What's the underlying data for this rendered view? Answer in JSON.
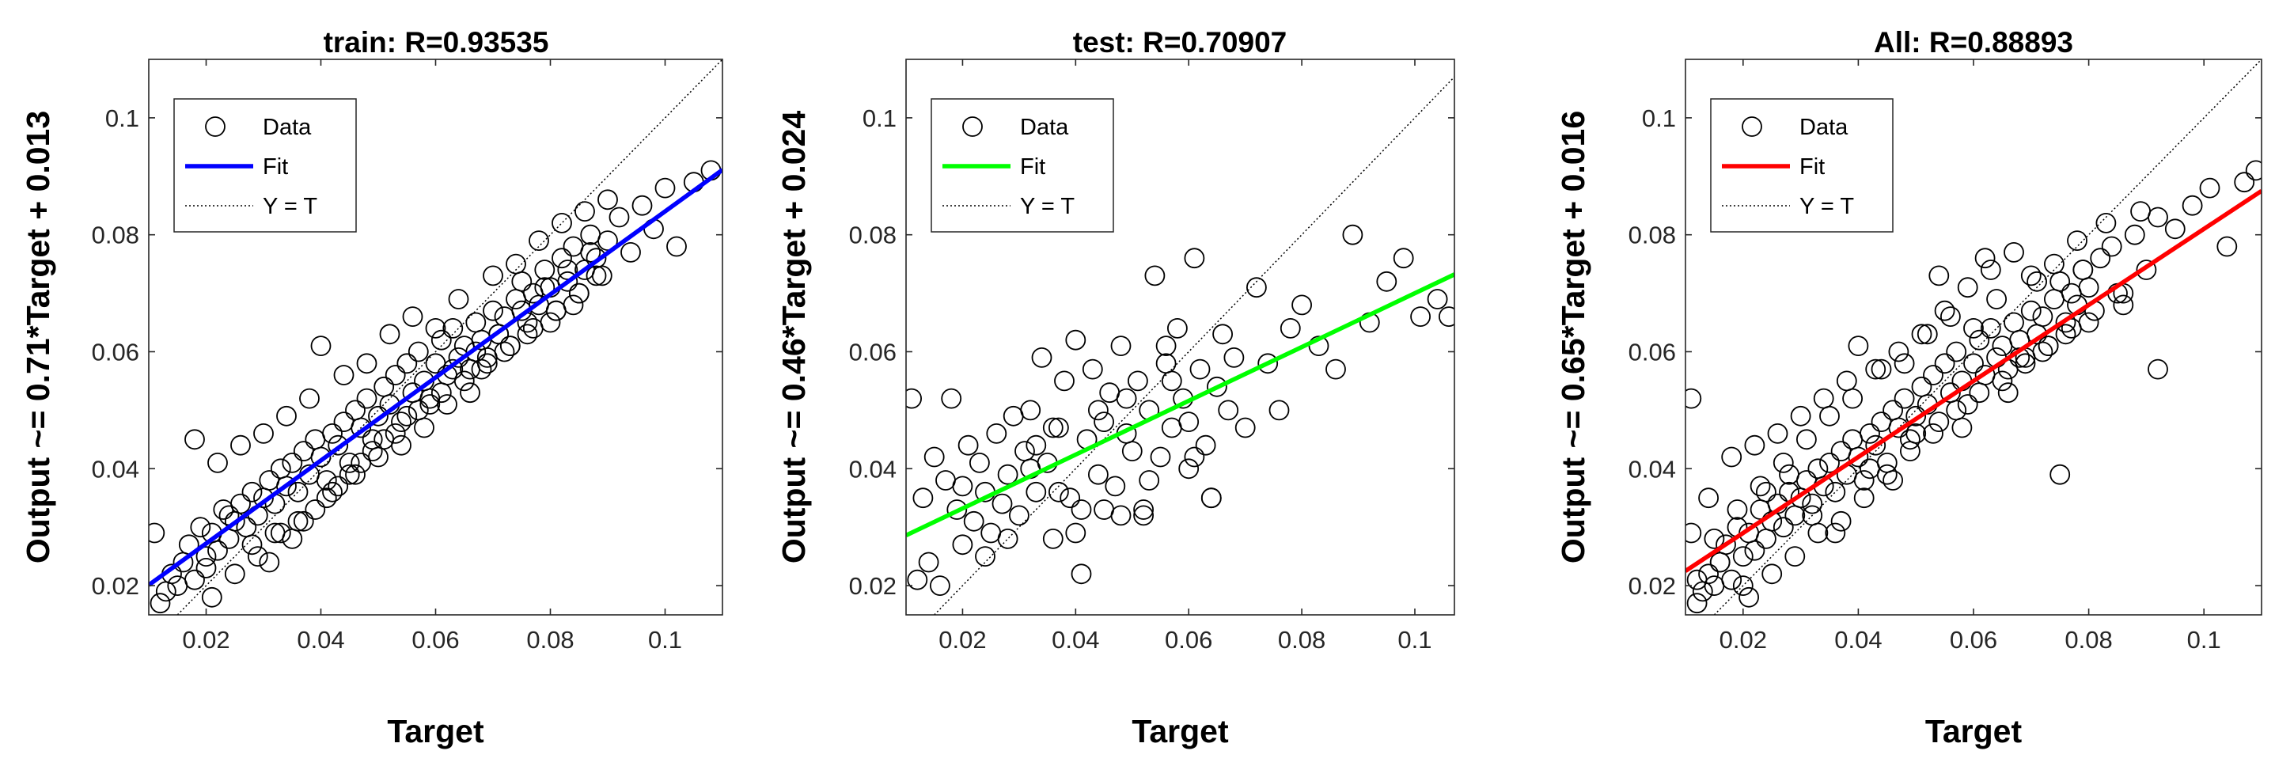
{
  "chart_data": [
    {
      "type": "scatter",
      "title": "train: R=0.93535",
      "xlabel": "Target",
      "ylabel": "Output ~= 0.71*Target + 0.013",
      "xlim": [
        0.01,
        0.11
      ],
      "ylim": [
        0.015,
        0.11
      ],
      "xticks": [
        0.02,
        0.04,
        0.06,
        0.08,
        0.1
      ],
      "yticks": [
        0.02,
        0.04,
        0.06,
        0.08,
        0.1
      ],
      "xtick_labels": [
        "0.02",
        "0.04",
        "0.06",
        "0.08",
        "0.1"
      ],
      "ytick_labels": [
        "0.02",
        "0.04",
        "0.06",
        "0.08",
        "0.1"
      ],
      "fit": {
        "slope": 0.71,
        "intercept": 0.013,
        "color": "#0000ff"
      },
      "legend": {
        "placement": "top-left",
        "entries": [
          "Data",
          "Fit",
          "Y = T"
        ]
      },
      "grid": false,
      "points_note": "",
      "x": [
        0.011,
        0.012,
        0.013,
        0.014,
        0.015,
        0.016,
        0.017,
        0.018,
        0.019,
        0.02,
        0.021,
        0.022,
        0.023,
        0.024,
        0.025,
        0.026,
        0.027,
        0.028,
        0.029,
        0.03,
        0.031,
        0.032,
        0.033,
        0.034,
        0.035,
        0.036,
        0.037,
        0.038,
        0.039,
        0.04,
        0.041,
        0.042,
        0.043,
        0.044,
        0.045,
        0.046,
        0.047,
        0.048,
        0.049,
        0.05,
        0.051,
        0.052,
        0.053,
        0.054,
        0.055,
        0.056,
        0.057,
        0.058,
        0.059,
        0.06,
        0.061,
        0.062,
        0.063,
        0.064,
        0.065,
        0.066,
        0.067,
        0.068,
        0.069,
        0.07,
        0.071,
        0.072,
        0.073,
        0.074,
        0.075,
        0.076,
        0.077,
        0.078,
        0.079,
        0.08,
        0.081,
        0.082,
        0.083,
        0.084,
        0.085,
        0.086,
        0.087,
        0.088,
        0.089,
        0.09,
        0.092,
        0.094,
        0.096,
        0.098,
        0.1,
        0.102,
        0.105,
        0.108,
        0.018,
        0.02,
        0.022,
        0.024,
        0.026,
        0.028,
        0.03,
        0.032,
        0.034,
        0.036,
        0.038,
        0.04,
        0.042,
        0.044,
        0.046,
        0.048,
        0.05,
        0.052,
        0.054,
        0.056,
        0.058,
        0.06,
        0.062,
        0.064,
        0.066,
        0.068,
        0.07,
        0.072,
        0.074,
        0.076,
        0.078,
        0.08,
        0.082,
        0.084,
        0.086,
        0.088,
        0.09,
        0.021,
        0.025,
        0.029,
        0.033,
        0.037,
        0.041,
        0.045,
        0.049,
        0.053,
        0.057,
        0.061,
        0.065,
        0.069,
        0.073,
        0.077,
        0.081,
        0.085,
        0.031,
        0.035,
        0.039,
        0.043,
        0.047,
        0.051,
        0.055,
        0.059,
        0.063,
        0.067,
        0.071,
        0.075,
        0.079,
        0.083,
        0.087
      ],
      "y": [
        0.029,
        0.017,
        0.019,
        0.022,
        0.02,
        0.024,
        0.027,
        0.021,
        0.03,
        0.025,
        0.029,
        0.026,
        0.033,
        0.028,
        0.031,
        0.034,
        0.03,
        0.036,
        0.032,
        0.035,
        0.038,
        0.034,
        0.04,
        0.037,
        0.041,
        0.036,
        0.043,
        0.039,
        0.045,
        0.042,
        0.038,
        0.046,
        0.044,
        0.048,
        0.041,
        0.05,
        0.047,
        0.052,
        0.045,
        0.049,
        0.054,
        0.051,
        0.056,
        0.048,
        0.058,
        0.053,
        0.06,
        0.055,
        0.051,
        0.058,
        0.062,
        0.056,
        0.064,
        0.059,
        0.061,
        0.057,
        0.065,
        0.062,
        0.059,
        0.067,
        0.063,
        0.066,
        0.061,
        0.069,
        0.072,
        0.065,
        0.07,
        0.068,
        0.074,
        0.071,
        0.067,
        0.076,
        0.072,
        0.078,
        0.07,
        0.074,
        0.08,
        0.076,
        0.073,
        0.079,
        0.083,
        0.077,
        0.085,
        0.081,
        0.088,
        0.078,
        0.089,
        0.091,
        0.045,
        0.023,
        0.041,
        0.032,
        0.044,
        0.027,
        0.046,
        0.029,
        0.049,
        0.031,
        0.052,
        0.061,
        0.036,
        0.056,
        0.039,
        0.058,
        0.042,
        0.063,
        0.044,
        0.066,
        0.047,
        0.064,
        0.051,
        0.069,
        0.053,
        0.057,
        0.073,
        0.06,
        0.075,
        0.063,
        0.079,
        0.065,
        0.082,
        0.068,
        0.084,
        0.073,
        0.086,
        0.018,
        0.022,
        0.025,
        0.029,
        0.031,
        0.035,
        0.039,
        0.043,
        0.046,
        0.05,
        0.053,
        0.055,
        0.058,
        0.061,
        0.064,
        0.067,
        0.07,
        0.024,
        0.028,
        0.033,
        0.037,
        0.041,
        0.045,
        0.049,
        0.052,
        0.057,
        0.06,
        0.063,
        0.067,
        0.071,
        0.074,
        0.077
      ]
    },
    {
      "type": "scatter",
      "title": "test: R=0.70907",
      "xlabel": "Target",
      "ylabel": "Output ~= 0.46*Target + 0.024",
      "xlim": [
        0.01,
        0.107
      ],
      "ylim": [
        0.015,
        0.11
      ],
      "xticks": [
        0.02,
        0.04,
        0.06,
        0.08,
        0.1
      ],
      "yticks": [
        0.02,
        0.04,
        0.06,
        0.08,
        0.1
      ],
      "xtick_labels": [
        "0.02",
        "0.04",
        "0.06",
        "0.08",
        "0.1"
      ],
      "ytick_labels": [
        "0.02",
        "0.04",
        "0.06",
        "0.08",
        "0.1"
      ],
      "fit": {
        "slope": 0.46,
        "intercept": 0.024,
        "color": "#00ff00"
      },
      "legend": {
        "placement": "top-left",
        "entries": [
          "Data",
          "Fit",
          "Y = T"
        ]
      },
      "grid": false,
      "x": [
        0.011,
        0.012,
        0.013,
        0.014,
        0.015,
        0.016,
        0.017,
        0.018,
        0.019,
        0.02,
        0.021,
        0.022,
        0.023,
        0.024,
        0.025,
        0.026,
        0.027,
        0.028,
        0.029,
        0.03,
        0.031,
        0.032,
        0.033,
        0.034,
        0.035,
        0.036,
        0.037,
        0.038,
        0.039,
        0.04,
        0.041,
        0.042,
        0.043,
        0.044,
        0.045,
        0.046,
        0.047,
        0.048,
        0.049,
        0.05,
        0.051,
        0.052,
        0.053,
        0.054,
        0.055,
        0.056,
        0.057,
        0.058,
        0.059,
        0.06,
        0.061,
        0.062,
        0.063,
        0.064,
        0.065,
        0.066,
        0.067,
        0.068,
        0.07,
        0.072,
        0.074,
        0.076,
        0.078,
        0.08,
        0.083,
        0.086,
        0.089,
        0.092,
        0.095,
        0.098,
        0.101,
        0.104,
        0.106,
        0.02,
        0.024,
        0.028,
        0.032,
        0.036,
        0.04,
        0.044,
        0.048,
        0.052,
        0.056,
        0.06,
        0.064,
        0.033,
        0.037,
        0.041,
        0.045,
        0.049,
        0.053,
        0.057,
        0.061
      ],
      "y": [
        0.052,
        0.021,
        0.035,
        0.024,
        0.042,
        0.02,
        0.038,
        0.052,
        0.033,
        0.037,
        0.044,
        0.031,
        0.041,
        0.036,
        0.029,
        0.046,
        0.034,
        0.039,
        0.049,
        0.032,
        0.043,
        0.05,
        0.036,
        0.059,
        0.041,
        0.028,
        0.047,
        0.055,
        0.035,
        0.062,
        0.033,
        0.045,
        0.057,
        0.039,
        0.048,
        0.053,
        0.037,
        0.061,
        0.046,
        0.043,
        0.055,
        0.033,
        0.05,
        0.073,
        0.042,
        0.058,
        0.047,
        0.064,
        0.052,
        0.048,
        0.076,
        0.057,
        0.044,
        0.035,
        0.054,
        0.063,
        0.05,
        0.059,
        0.047,
        0.071,
        0.058,
        0.05,
        0.064,
        0.068,
        0.061,
        0.057,
        0.08,
        0.065,
        0.072,
        0.076,
        0.066,
        0.069,
        0.066,
        0.027,
        0.025,
        0.028,
        0.04,
        0.047,
        0.029,
        0.05,
        0.032,
        0.032,
        0.061,
        0.04,
        0.035,
        0.044,
        0.036,
        0.022,
        0.033,
        0.052,
        0.038,
        0.055,
        0.042
      ]
    },
    {
      "type": "scatter",
      "title": "All: R=0.88893",
      "xlabel": "Target",
      "ylabel": "Output ~= 0.65*Target + 0.016",
      "xlim": [
        0.01,
        0.11
      ],
      "ylim": [
        0.015,
        0.11
      ],
      "xticks": [
        0.02,
        0.04,
        0.06,
        0.08,
        0.1
      ],
      "yticks": [
        0.02,
        0.04,
        0.06,
        0.08,
        0.1
      ],
      "xtick_labels": [
        "0.02",
        "0.04",
        "0.06",
        "0.08",
        "0.1"
      ],
      "ytick_labels": [
        "0.02",
        "0.04",
        "0.06",
        "0.08",
        "0.1"
      ],
      "fit": {
        "slope": 0.65,
        "intercept": 0.016,
        "color": "#ff0000"
      },
      "legend": {
        "placement": "top-left",
        "entries": [
          "Data",
          "Fit",
          "Y = T"
        ]
      },
      "grid": false,
      "x": [
        0.011,
        0.012,
        0.013,
        0.014,
        0.015,
        0.016,
        0.017,
        0.018,
        0.019,
        0.02,
        0.021,
        0.022,
        0.023,
        0.024,
        0.025,
        0.026,
        0.027,
        0.028,
        0.029,
        0.03,
        0.031,
        0.032,
        0.033,
        0.034,
        0.035,
        0.036,
        0.037,
        0.038,
        0.039,
        0.04,
        0.041,
        0.042,
        0.043,
        0.044,
        0.045,
        0.046,
        0.047,
        0.048,
        0.049,
        0.05,
        0.051,
        0.052,
        0.053,
        0.054,
        0.055,
        0.056,
        0.057,
        0.058,
        0.059,
        0.06,
        0.061,
        0.062,
        0.063,
        0.064,
        0.065,
        0.066,
        0.067,
        0.068,
        0.069,
        0.07,
        0.071,
        0.072,
        0.073,
        0.074,
        0.075,
        0.076,
        0.077,
        0.078,
        0.079,
        0.08,
        0.082,
        0.084,
        0.086,
        0.088,
        0.09,
        0.092,
        0.095,
        0.098,
        0.101,
        0.104,
        0.107,
        0.109,
        0.011,
        0.012,
        0.014,
        0.016,
        0.018,
        0.02,
        0.022,
        0.024,
        0.026,
        0.028,
        0.03,
        0.032,
        0.034,
        0.036,
        0.038,
        0.04,
        0.042,
        0.044,
        0.046,
        0.048,
        0.05,
        0.052,
        0.054,
        0.056,
        0.058,
        0.06,
        0.062,
        0.064,
        0.066,
        0.068,
        0.07,
        0.072,
        0.074,
        0.076,
        0.078,
        0.08,
        0.083,
        0.086,
        0.089,
        0.092,
        0.021,
        0.025,
        0.029,
        0.033,
        0.037,
        0.041,
        0.045,
        0.049,
        0.053,
        0.057,
        0.061,
        0.065,
        0.069,
        0.073,
        0.077,
        0.081,
        0.085,
        0.015,
        0.019,
        0.023,
        0.027,
        0.031,
        0.035,
        0.039,
        0.043,
        0.047,
        0.051,
        0.055,
        0.059,
        0.063,
        0.067,
        0.071,
        0.075,
        0.079
      ],
      "y": [
        0.029,
        0.017,
        0.019,
        0.022,
        0.02,
        0.024,
        0.027,
        0.021,
        0.03,
        0.025,
        0.029,
        0.026,
        0.033,
        0.028,
        0.031,
        0.034,
        0.03,
        0.036,
        0.032,
        0.035,
        0.038,
        0.034,
        0.04,
        0.037,
        0.041,
        0.036,
        0.043,
        0.039,
        0.045,
        0.042,
        0.038,
        0.046,
        0.044,
        0.048,
        0.041,
        0.05,
        0.047,
        0.052,
        0.045,
        0.049,
        0.054,
        0.051,
        0.056,
        0.048,
        0.058,
        0.053,
        0.06,
        0.055,
        0.051,
        0.058,
        0.062,
        0.056,
        0.064,
        0.059,
        0.061,
        0.057,
        0.065,
        0.062,
        0.059,
        0.067,
        0.063,
        0.066,
        0.061,
        0.069,
        0.072,
        0.065,
        0.07,
        0.068,
        0.074,
        0.071,
        0.076,
        0.078,
        0.07,
        0.08,
        0.074,
        0.083,
        0.081,
        0.085,
        0.088,
        0.078,
        0.089,
        0.091,
        0.052,
        0.021,
        0.035,
        0.024,
        0.042,
        0.02,
        0.044,
        0.036,
        0.046,
        0.039,
        0.049,
        0.032,
        0.052,
        0.029,
        0.055,
        0.061,
        0.04,
        0.057,
        0.038,
        0.058,
        0.046,
        0.063,
        0.073,
        0.066,
        0.047,
        0.064,
        0.076,
        0.069,
        0.053,
        0.059,
        0.073,
        0.06,
        0.075,
        0.063,
        0.079,
        0.065,
        0.082,
        0.068,
        0.084,
        0.057,
        0.018,
        0.022,
        0.025,
        0.029,
        0.031,
        0.035,
        0.039,
        0.043,
        0.046,
        0.05,
        0.053,
        0.055,
        0.058,
        0.061,
        0.064,
        0.067,
        0.07,
        0.028,
        0.033,
        0.037,
        0.041,
        0.045,
        0.049,
        0.052,
        0.057,
        0.06,
        0.063,
        0.067,
        0.071,
        0.074,
        0.077,
        0.072,
        0.039,
        0.074
      ]
    }
  ]
}
